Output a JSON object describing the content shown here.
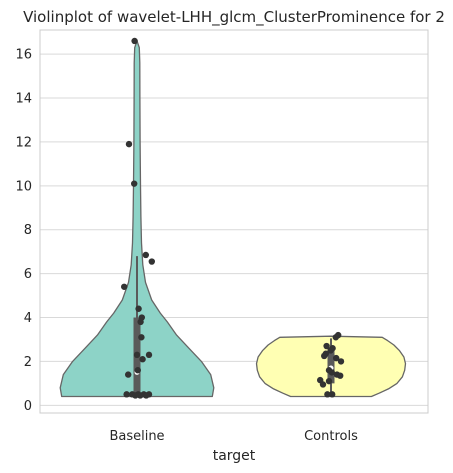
{
  "chart_data": {
    "type": "violin",
    "title": "Violinplot of wavelet-LHH_glcm_ClusterProminence for 2",
    "xlabel": "target",
    "ylabel": "",
    "ylim": [
      -0.35,
      17.1
    ],
    "yticks": [
      0,
      2,
      4,
      6,
      8,
      10,
      12,
      14,
      16
    ],
    "grid": "y",
    "categories": [
      "Baseline",
      "Controls"
    ],
    "series": [
      {
        "category": "Baseline",
        "color": "#8dd3c7",
        "min": 0.4,
        "max": 16.6,
        "q1": 0.45,
        "median": 1.5,
        "q3": 4.0,
        "whisker_high": 6.8,
        "density": [
          [
            0.4,
            0.97
          ],
          [
            0.8,
            0.99
          ],
          [
            1.4,
            0.95
          ],
          [
            2.0,
            0.83
          ],
          [
            2.6,
            0.67
          ],
          [
            3.2,
            0.51
          ],
          [
            3.8,
            0.39
          ],
          [
            4.2,
            0.3
          ],
          [
            4.8,
            0.19
          ],
          [
            5.6,
            0.11
          ],
          [
            6.4,
            0.075
          ],
          [
            7.4,
            0.058
          ],
          [
            8.6,
            0.05
          ],
          [
            10,
            0.045
          ],
          [
            12,
            0.04
          ],
          [
            14,
            0.038
          ],
          [
            15.6,
            0.036
          ],
          [
            16.3,
            0.03
          ],
          [
            16.6,
            0.0
          ]
        ],
        "points": [
          [
            16.6,
            -0.06
          ],
          [
            11.9,
            -0.2
          ],
          [
            10.1,
            -0.07
          ],
          [
            6.85,
            0.22
          ],
          [
            6.55,
            0.37
          ],
          [
            5.4,
            -0.32
          ],
          [
            4.4,
            0.04
          ],
          [
            4.0,
            0.12
          ],
          [
            3.8,
            0.09
          ],
          [
            3.1,
            0.11
          ],
          [
            2.3,
            0.0
          ],
          [
            2.3,
            0.3
          ],
          [
            2.1,
            0.14
          ],
          [
            1.6,
            0.02
          ],
          [
            1.4,
            -0.22
          ],
          [
            0.5,
            -0.26
          ],
          [
            0.5,
            -0.12
          ],
          [
            0.5,
            0.03
          ],
          [
            0.5,
            0.17
          ],
          [
            0.5,
            0.3
          ],
          [
            0.45,
            0.08
          ],
          [
            0.45,
            -0.04
          ],
          [
            0.45,
            0.23
          ]
        ]
      },
      {
        "category": "Controls",
        "color": "#ffffb3",
        "min": 0.4,
        "max": 3.15,
        "q1": 1.0,
        "median": 1.7,
        "q3": 2.55,
        "whisker_high": 3.05,
        "density": [
          [
            0.4,
            0.52
          ],
          [
            0.55,
            0.62
          ],
          [
            0.75,
            0.74
          ],
          [
            1.0,
            0.85
          ],
          [
            1.3,
            0.92
          ],
          [
            1.6,
            0.95
          ],
          [
            1.9,
            0.96
          ],
          [
            2.2,
            0.94
          ],
          [
            2.5,
            0.88
          ],
          [
            2.75,
            0.81
          ],
          [
            2.95,
            0.73
          ],
          [
            3.1,
            0.66
          ],
          [
            3.15,
            0.0
          ]
        ],
        "points": [
          [
            3.2,
            0.18
          ],
          [
            3.1,
            0.12
          ],
          [
            2.7,
            -0.11
          ],
          [
            2.6,
            0.04
          ],
          [
            2.5,
            -0.01
          ],
          [
            2.35,
            -0.13
          ],
          [
            2.25,
            -0.17
          ],
          [
            2.15,
            0.13
          ],
          [
            2.0,
            0.25
          ],
          [
            1.6,
            -0.05
          ],
          [
            1.5,
            0.02
          ],
          [
            1.4,
            0.15
          ],
          [
            1.35,
            0.23
          ],
          [
            1.15,
            -0.27
          ],
          [
            1.1,
            -0.05
          ],
          [
            0.95,
            -0.2
          ],
          [
            0.5,
            -0.09
          ],
          [
            0.5,
            0.03
          ]
        ]
      }
    ]
  }
}
